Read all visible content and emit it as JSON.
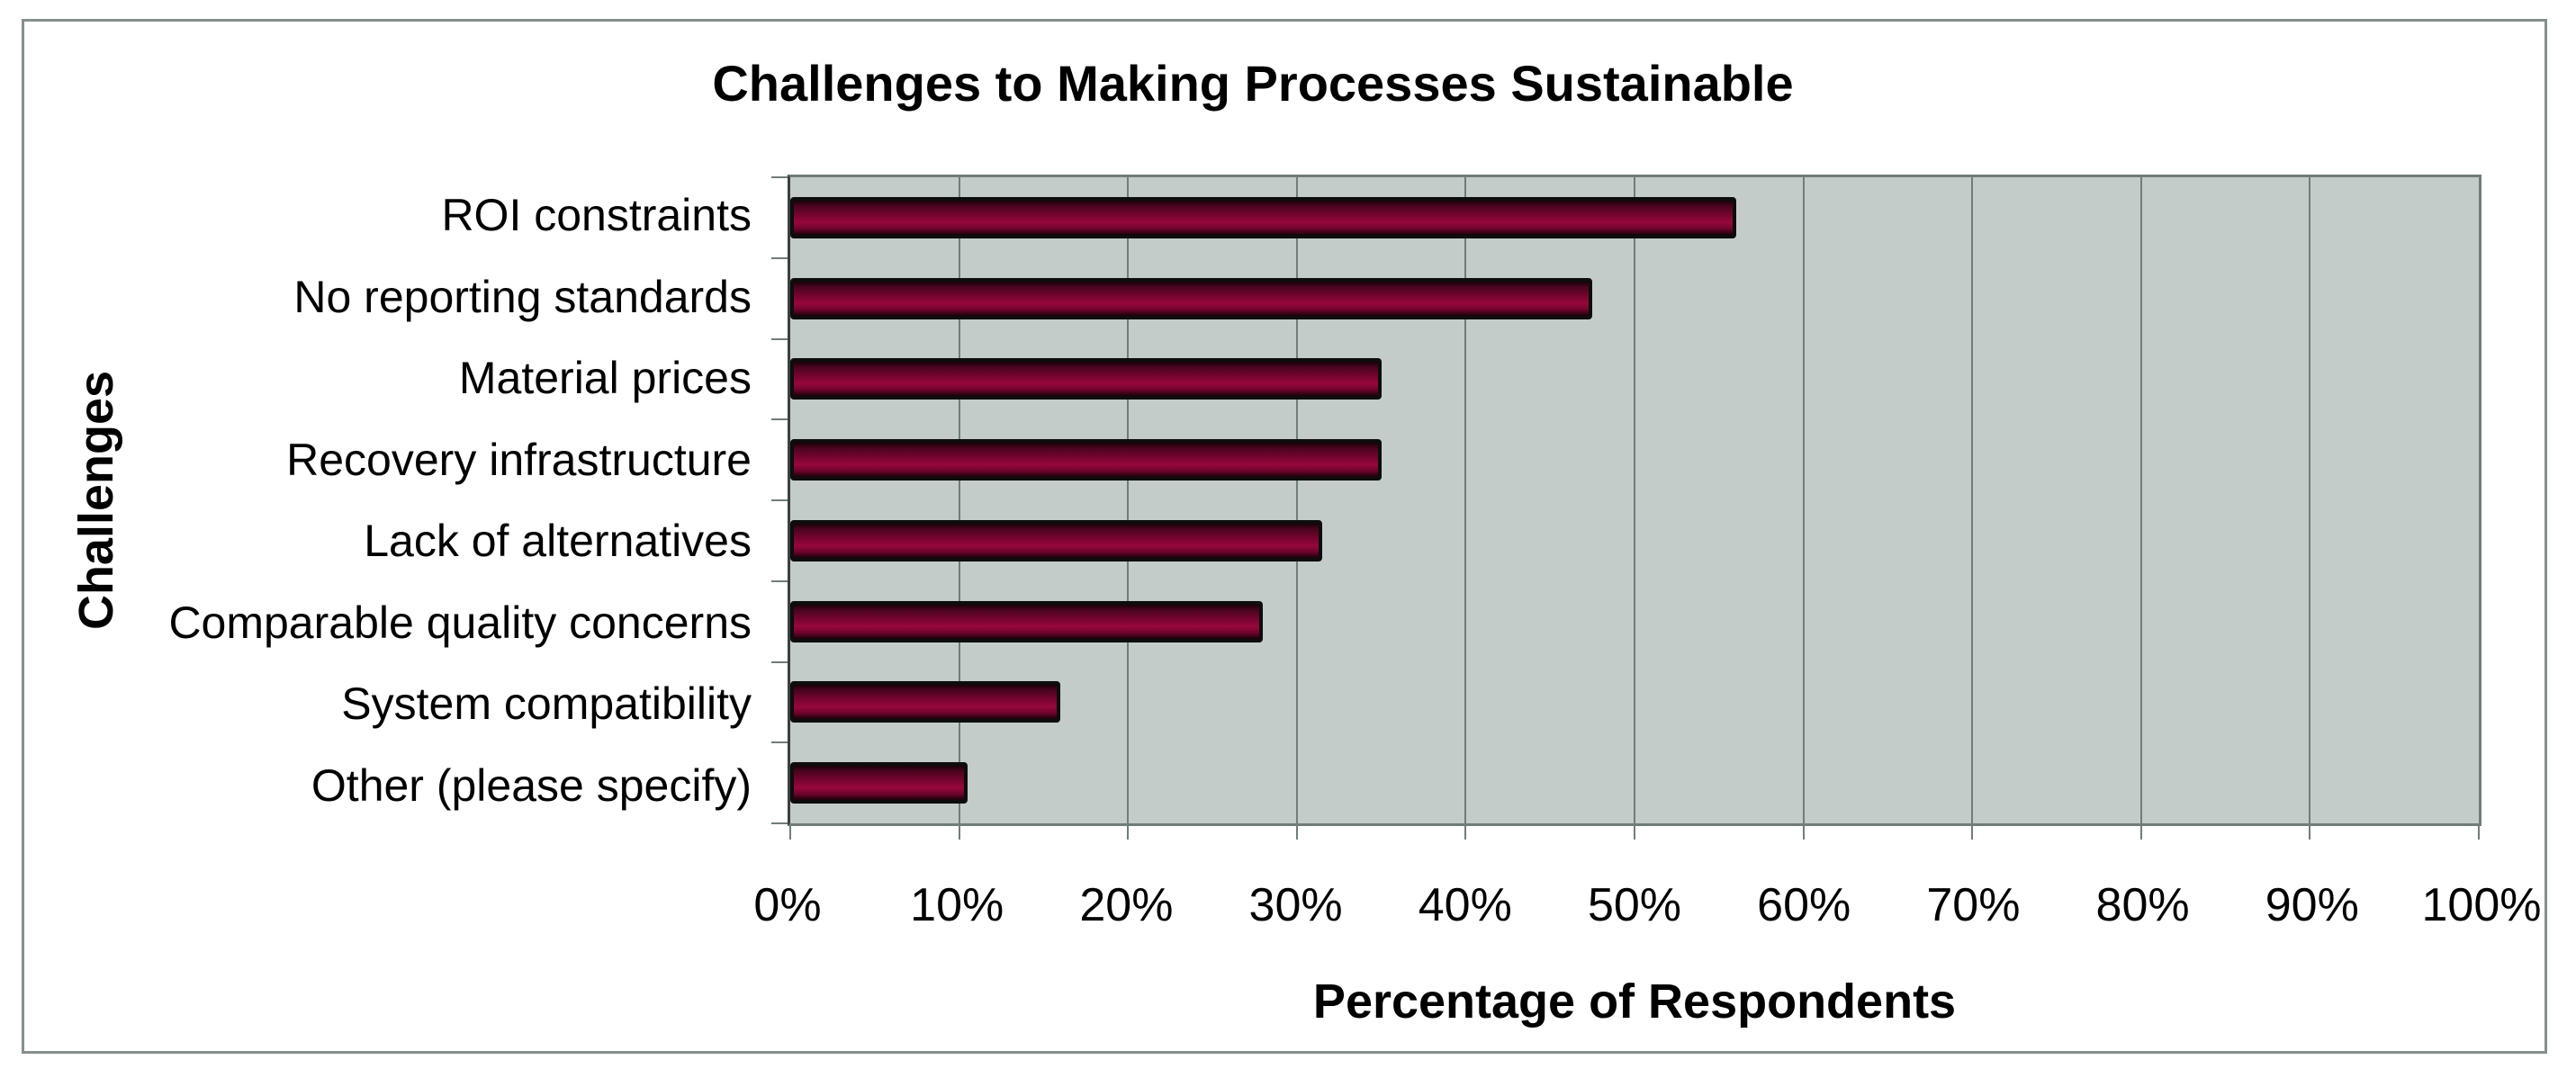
{
  "chart_data": {
    "type": "bar",
    "orientation": "horizontal",
    "title": "Challenges to Making Processes Sustainable",
    "xlabel": "Percentage of Respondents",
    "ylabel": "Challenges",
    "categories": [
      "ROI constraints",
      "No reporting standards",
      "Material prices",
      "Recovery infrastructure",
      "Lack of alternatives",
      "Comparable quality concerns",
      "System compatibility",
      "Other (please specify)"
    ],
    "values": [
      56,
      47.5,
      35,
      35,
      31.5,
      28,
      16,
      10.5
    ],
    "unit": "%",
    "xlim": [
      0,
      100
    ],
    "x_ticks": [
      "0%",
      "10%",
      "20%",
      "30%",
      "40%",
      "50%",
      "60%",
      "70%",
      "80%",
      "90%",
      "100%"
    ],
    "gridlines": "vertical, every 10%",
    "legend": "none",
    "colors": {
      "background": "#ffffff",
      "figure_border": "#85908d",
      "plot_background": "#c3ccc9",
      "gridline": "#707d7a",
      "axis_line": "#3a403e",
      "bar_fill_bright": "#97073c",
      "bar_fill_mid": "#7c0433",
      "bar_fill_dark": "#190109",
      "bar_border": "#0d0d0d",
      "text": "#000000"
    }
  }
}
